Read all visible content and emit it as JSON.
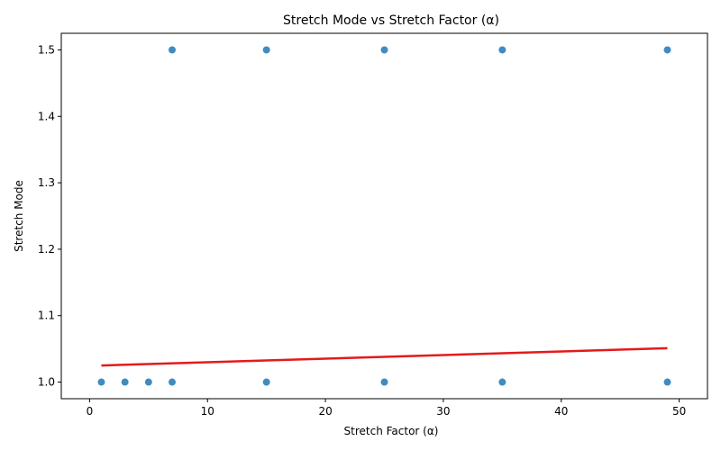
{
  "chart_data": {
    "type": "scatter",
    "title": "Stretch Mode vs Stretch Factor (α)",
    "xlabel": "Stretch Factor (α)",
    "ylabel": "Stretch Mode",
    "xlim": [
      -2.4,
      52.4
    ],
    "ylim": [
      0.975,
      1.525
    ],
    "x_ticks": [
      0,
      10,
      20,
      30,
      40,
      50
    ],
    "y_ticks": [
      1.0,
      1.1,
      1.2,
      1.3,
      1.4,
      1.5
    ],
    "x_tick_labels": [
      "0",
      "10",
      "20",
      "30",
      "40",
      "50"
    ],
    "y_tick_labels": [
      "1.0",
      "1.1",
      "1.2",
      "1.3",
      "1.4",
      "1.5"
    ],
    "grid": false,
    "series": [
      {
        "type": "scatter",
        "color": "#1f77b4",
        "points": [
          [
            1,
            1.0
          ],
          [
            3,
            1.0
          ],
          [
            5,
            1.0
          ],
          [
            7,
            1.0
          ],
          [
            15,
            1.0
          ],
          [
            25,
            1.0
          ],
          [
            35,
            1.0
          ],
          [
            49,
            1.0
          ],
          [
            7,
            1.5
          ],
          [
            15,
            1.5
          ],
          [
            25,
            1.5
          ],
          [
            35,
            1.5
          ],
          [
            49,
            1.5
          ]
        ]
      },
      {
        "type": "line",
        "color": "#e41a1c",
        "x": [
          1,
          49
        ],
        "y": [
          1.025,
          1.051
        ]
      }
    ]
  }
}
